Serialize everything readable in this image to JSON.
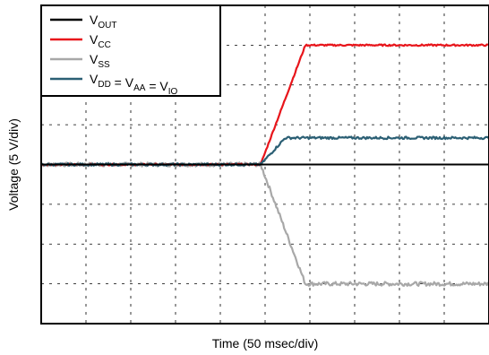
{
  "chart_data": {
    "type": "line",
    "xlabel": "Time (50 msec/div)",
    "ylabel": "Voltage (5 V/div)",
    "x_divisions": 10,
    "y_divisions": 8,
    "xlim": [
      0,
      10
    ],
    "ylim": [
      -4,
      4
    ],
    "grid": true,
    "grid_style": "dashed",
    "legend_placement": "top-left",
    "series": [
      {
        "name": "V_OUT",
        "label_main": "V",
        "label_sub": "OUT",
        "color": "#000000",
        "noise": 0.0,
        "x": [
          0,
          10
        ],
        "y": [
          0,
          0
        ]
      },
      {
        "name": "V_CC",
        "label_main": "V",
        "label_sub": "CC",
        "color": "#e8151b",
        "noise": 0.02,
        "x": [
          0,
          4.9,
          5.9,
          10
        ],
        "y": [
          0,
          0,
          3.0,
          3.0
        ]
      },
      {
        "name": "V_SS",
        "label_main": "V",
        "label_sub": "SS",
        "color": "#a8a8a8",
        "noise": 0.05,
        "x": [
          0,
          4.9,
          5.9,
          10
        ],
        "y": [
          0,
          0,
          -3.0,
          -3.0
        ]
      },
      {
        "name": "V_DD = V_AA = V_IO",
        "label_parts": [
          {
            "main": "V",
            "sub": "DD"
          },
          {
            "main": " = V",
            "sub": "AA"
          },
          {
            "main": " = V",
            "sub": "IO"
          }
        ],
        "color": "#2b5f74",
        "noise": 0.03,
        "x": [
          0,
          4.9,
          5.45,
          10
        ],
        "y": [
          0,
          0,
          0.67,
          0.67
        ]
      }
    ]
  }
}
